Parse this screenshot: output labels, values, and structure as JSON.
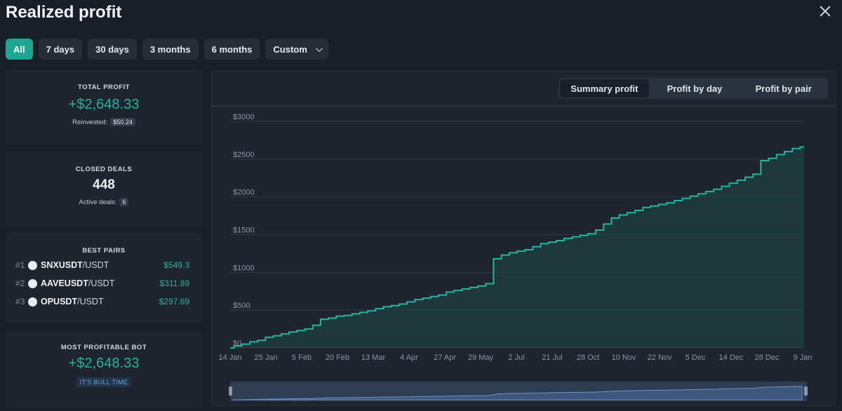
{
  "header": {
    "title": "Realized profit"
  },
  "filters": {
    "all": "All",
    "d7": "7 days",
    "d30": "30 days",
    "m3": "3 months",
    "m6": "6 months",
    "custom": "Custom"
  },
  "total_profit": {
    "label": "TOTAL PROFIT",
    "value": "+$2,648.33",
    "reinvested_label": "Reinvested:",
    "reinvested_value": "$50.24"
  },
  "closed_deals": {
    "label": "CLOSED DEALS",
    "value": "448",
    "active_label": "Active deals:",
    "active_value": "6"
  },
  "best_pairs": {
    "label": "BEST PAIRS",
    "items": [
      {
        "rank": "#1",
        "base": "SNXUSDT",
        "quote": "/USDT",
        "value": "$549.3"
      },
      {
        "rank": "#2",
        "base": "AAVEUSDT",
        "quote": "/USDT",
        "value": "$311.89"
      },
      {
        "rank": "#3",
        "base": "OPUSDT",
        "quote": "/USDT",
        "value": "$297.69"
      }
    ]
  },
  "most_profitable_bot": {
    "label": "MOST PROFITABLE BOT",
    "value": "+$2,648.33",
    "badge": "IT'S BULL TIME"
  },
  "chart_tabs": {
    "summary": "Summary profit",
    "by_day": "Profit by day",
    "by_pair": "Profit by pair"
  },
  "colors": {
    "accent": "#1ea693",
    "line": "#26b39f",
    "background": "#1a1f27"
  },
  "chart_data": {
    "type": "area",
    "title": "",
    "xlabel": "",
    "ylabel": "",
    "ylim": [
      0,
      3000
    ],
    "y_ticks": [
      0,
      500,
      1000,
      1500,
      2000,
      2500,
      3000
    ],
    "y_tick_labels": [
      "$0",
      "$500",
      "$1000",
      "$1500",
      "$2000",
      "$2500",
      "$3000"
    ],
    "x_tick_labels": [
      "14 Jan",
      "25 Jan",
      "5 Feb",
      "20 Feb",
      "13 Mar",
      "4 Apr",
      "27 Apr",
      "29 May",
      "2 Jul",
      "21 Jul",
      "28 Oct",
      "10 Nov",
      "22 Nov",
      "5 Dec",
      "14 Dec",
      "28 Dec",
      "9 Jan"
    ],
    "grid": true,
    "series": [
      {
        "values": [
          0,
          25,
          50,
          80,
          100,
          140,
          160,
          185,
          210,
          230,
          250,
          300,
          380,
          395,
          420,
          430,
          450,
          470,
          490,
          520,
          545,
          560,
          580,
          610,
          640,
          660,
          680,
          700,
          740,
          760,
          780,
          800,
          820,
          850,
          1180,
          1230,
          1260,
          1280,
          1300,
          1340,
          1380,
          1400,
          1420,
          1450,
          1470,
          1490,
          1510,
          1560,
          1640,
          1720,
          1760,
          1790,
          1820,
          1860,
          1880,
          1900,
          1920,
          1950,
          1980,
          2010,
          2040,
          2070,
          2100,
          2140,
          2180,
          2220,
          2260,
          2300,
          2480,
          2510,
          2560,
          2600,
          2640,
          2660
        ]
      }
    ]
  }
}
